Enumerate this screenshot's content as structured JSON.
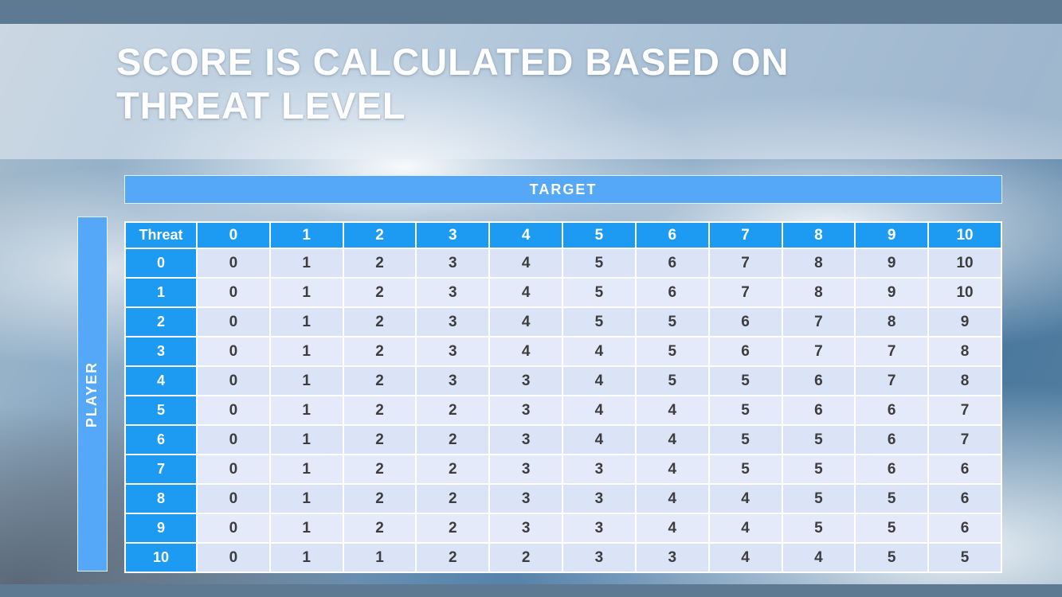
{
  "slide": {
    "title": "SCORE IS CALCULATED BASED ON THREAT LEVEL"
  },
  "table": {
    "target_label": "TARGET",
    "player_label": "PLAYER",
    "corner_label": "Threat",
    "column_headers": [
      "0",
      "1",
      "2",
      "3",
      "4",
      "5",
      "6",
      "7",
      "8",
      "9",
      "10"
    ],
    "rows": [
      {
        "threat": "0",
        "values": [
          "0",
          "1",
          "2",
          "3",
          "4",
          "5",
          "6",
          "7",
          "8",
          "9",
          "10"
        ]
      },
      {
        "threat": "1",
        "values": [
          "0",
          "1",
          "2",
          "3",
          "4",
          "5",
          "6",
          "7",
          "8",
          "9",
          "10"
        ]
      },
      {
        "threat": "2",
        "values": [
          "0",
          "1",
          "2",
          "3",
          "4",
          "5",
          "5",
          "6",
          "7",
          "8",
          "9"
        ]
      },
      {
        "threat": "3",
        "values": [
          "0",
          "1",
          "2",
          "3",
          "4",
          "4",
          "5",
          "6",
          "7",
          "7",
          "8"
        ]
      },
      {
        "threat": "4",
        "values": [
          "0",
          "1",
          "2",
          "3",
          "3",
          "4",
          "5",
          "5",
          "6",
          "7",
          "8"
        ]
      },
      {
        "threat": "5",
        "values": [
          "0",
          "1",
          "2",
          "2",
          "3",
          "4",
          "4",
          "5",
          "6",
          "6",
          "7"
        ]
      },
      {
        "threat": "6",
        "values": [
          "0",
          "1",
          "2",
          "2",
          "3",
          "4",
          "4",
          "5",
          "5",
          "6",
          "7"
        ]
      },
      {
        "threat": "7",
        "values": [
          "0",
          "1",
          "2",
          "2",
          "3",
          "3",
          "4",
          "5",
          "5",
          "6",
          "6"
        ]
      },
      {
        "threat": "8",
        "values": [
          "0",
          "1",
          "2",
          "2",
          "3",
          "3",
          "4",
          "4",
          "5",
          "5",
          "6"
        ]
      },
      {
        "threat": "9",
        "values": [
          "0",
          "1",
          "2",
          "2",
          "3",
          "3",
          "4",
          "4",
          "5",
          "5",
          "6"
        ]
      },
      {
        "threat": "10",
        "values": [
          "0",
          "1",
          "1",
          "2",
          "2",
          "3",
          "3",
          "4",
          "4",
          "5",
          "5"
        ]
      }
    ]
  },
  "colors": {
    "accent_light": "#55a8f7",
    "accent": "#1d9bf3",
    "bar_dark": "#5d7a92",
    "cell_bg": "#dbe3f7",
    "cell_bg_alt": "#e4eafa",
    "cell_text": "#3d3d3d",
    "title_text": "#ffffff"
  }
}
